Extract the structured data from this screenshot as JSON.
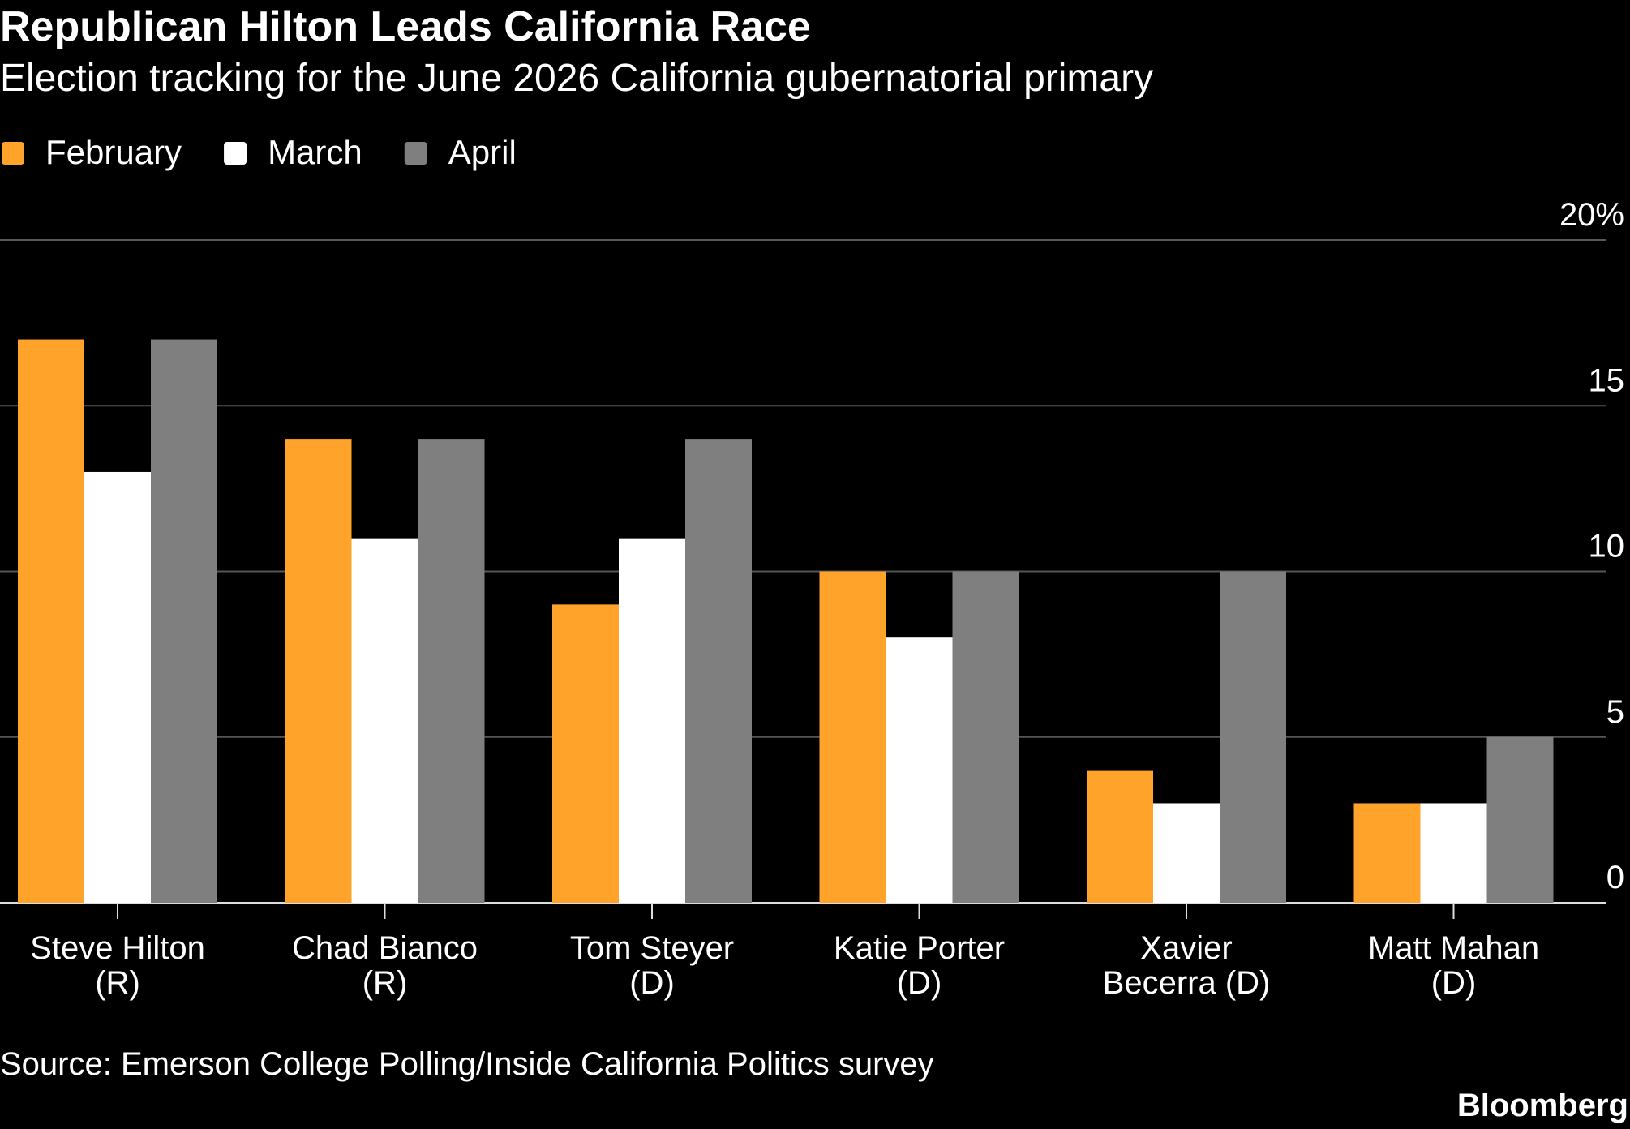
{
  "chart_data": {
    "type": "bar",
    "title": "Republican Hilton Leads California Race",
    "subtitle": "Election tracking for the June 2026 California gubernatorial primary",
    "categories": [
      "Steve Hilton (R)",
      "Chad Bianco (R)",
      "Tom Steyer (D)",
      "Katie Porter (D)",
      "Xavier Becerra (D)",
      "Matt Mahan (D)"
    ],
    "series": [
      {
        "name": "February",
        "color": "#ffa32b",
        "values": [
          17,
          14,
          9,
          10,
          4,
          3
        ]
      },
      {
        "name": "March",
        "color": "#ffffff",
        "values": [
          13,
          11,
          11,
          8,
          3,
          3
        ]
      },
      {
        "name": "April",
        "color": "#7f7f7f",
        "values": [
          17,
          14,
          14,
          10,
          10,
          5
        ]
      }
    ],
    "ylim": [
      0,
      20
    ],
    "yticks": [
      0,
      5,
      10,
      15,
      {
        "value": 20,
        "label": "20%"
      }
    ],
    "grid": true,
    "legend": "top-left",
    "source": "Source: Emerson College Polling/Inside California Politics survey",
    "brand": "Bloomberg"
  }
}
